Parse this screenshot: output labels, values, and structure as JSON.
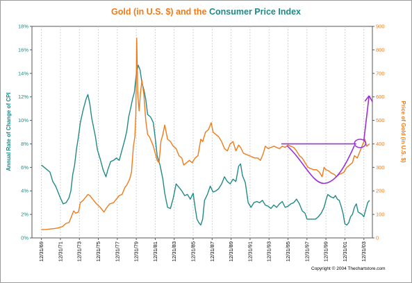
{
  "colors": {
    "cpi": "#1f8a87",
    "gold": "#f07a18",
    "annotation": "#9b30d9",
    "grid": "#c7c7c7",
    "axis": "#555555"
  },
  "copyright": "Copyright © 2004 Thechartstore.com",
  "chart_data": {
    "type": "line",
    "title": {
      "part1": "Gold (in U.S. $)",
      "part2": " and the ",
      "part3": "Consumer Price Index"
    },
    "ylabel_left": "Annual Rate of Change of CPI",
    "ylabel_right": "Price of Gold (in U.S. $)",
    "y_left": {
      "min": 0,
      "max": 18,
      "ticks": [
        "0%",
        "2%",
        "4%",
        "6%",
        "8%",
        "10%",
        "12%",
        "14%",
        "16%",
        "18%"
      ]
    },
    "y_right": {
      "min": 0,
      "max": 900,
      "ticks": [
        "0",
        "100",
        "200",
        "300",
        "400",
        "500",
        "600",
        "700",
        "800",
        "900"
      ]
    },
    "x_range": [
      1969.0,
      2004.9
    ],
    "x_ticks": [
      "12/31/69",
      "12/31/71",
      "12/31/73",
      "12/31/75",
      "12/31/77",
      "12/31/79",
      "12/31/81",
      "12/31/83",
      "12/31/85",
      "12/31/87",
      "12/31/89",
      "12/31/91",
      "12/31/93",
      "12/31/95",
      "12/31/97",
      "12/31/99",
      "12/31/01",
      "12/31/03"
    ],
    "grid": "vertical-dashed",
    "series": [
      {
        "name": "CPI",
        "axis": "left",
        "points": [
          [
            1970.0,
            6.2
          ],
          [
            1970.3,
            6.0
          ],
          [
            1970.6,
            5.8
          ],
          [
            1970.9,
            5.6
          ],
          [
            1971.2,
            4.8
          ],
          [
            1971.5,
            4.4
          ],
          [
            1971.8,
            3.8
          ],
          [
            1972.0,
            3.4
          ],
          [
            1972.3,
            2.9
          ],
          [
            1972.6,
            3.0
          ],
          [
            1972.9,
            3.4
          ],
          [
            1973.1,
            4.0
          ],
          [
            1973.3,
            5.4
          ],
          [
            1973.5,
            6.2
          ],
          [
            1973.7,
            7.6
          ],
          [
            1973.9,
            8.6
          ],
          [
            1974.1,
            9.8
          ],
          [
            1974.4,
            10.9
          ],
          [
            1974.7,
            11.8
          ],
          [
            1974.9,
            12.2
          ],
          [
            1975.1,
            11.4
          ],
          [
            1975.3,
            10.2
          ],
          [
            1975.5,
            9.4
          ],
          [
            1975.7,
            8.6
          ],
          [
            1975.9,
            7.5
          ],
          [
            1976.2,
            6.7
          ],
          [
            1976.5,
            5.8
          ],
          [
            1976.8,
            5.2
          ],
          [
            1977.0,
            5.8
          ],
          [
            1977.3,
            6.5
          ],
          [
            1977.6,
            6.6
          ],
          [
            1977.9,
            6.8
          ],
          [
            1978.2,
            6.6
          ],
          [
            1978.5,
            7.5
          ],
          [
            1978.8,
            8.4
          ],
          [
            1979.0,
            9.1
          ],
          [
            1979.2,
            10.3
          ],
          [
            1979.4,
            11.0
          ],
          [
            1979.6,
            11.8
          ],
          [
            1979.8,
            12.4
          ],
          [
            1980.0,
            13.9
          ],
          [
            1980.2,
            14.7
          ],
          [
            1980.4,
            14.3
          ],
          [
            1980.6,
            13.2
          ],
          [
            1980.8,
            12.6
          ],
          [
            1981.0,
            11.8
          ],
          [
            1981.2,
            10.5
          ],
          [
            1981.5,
            10.3
          ],
          [
            1981.8,
            9.8
          ],
          [
            1982.0,
            8.5
          ],
          [
            1982.2,
            7.0
          ],
          [
            1982.5,
            6.2
          ],
          [
            1982.8,
            5.0
          ],
          [
            1983.0,
            3.8
          ],
          [
            1983.3,
            2.6
          ],
          [
            1983.6,
            2.5
          ],
          [
            1983.9,
            3.4
          ],
          [
            1984.2,
            4.6
          ],
          [
            1984.5,
            4.3
          ],
          [
            1984.8,
            4.0
          ],
          [
            1985.1,
            3.6
          ],
          [
            1985.4,
            3.7
          ],
          [
            1985.7,
            3.3
          ],
          [
            1986.0,
            3.8
          ],
          [
            1986.2,
            2.6
          ],
          [
            1986.4,
            1.6
          ],
          [
            1986.6,
            1.3
          ],
          [
            1986.8,
            1.1
          ],
          [
            1987.0,
            1.6
          ],
          [
            1987.2,
            3.2
          ],
          [
            1987.5,
            3.7
          ],
          [
            1987.8,
            4.4
          ],
          [
            1988.1,
            3.9
          ],
          [
            1988.4,
            4.0
          ],
          [
            1988.7,
            4.2
          ],
          [
            1989.0,
            4.6
          ],
          [
            1989.3,
            5.2
          ],
          [
            1989.6,
            4.8
          ],
          [
            1989.9,
            4.6
          ],
          [
            1990.2,
            5.0
          ],
          [
            1990.5,
            4.8
          ],
          [
            1990.8,
            6.1
          ],
          [
            1991.0,
            6.3
          ],
          [
            1991.2,
            5.3
          ],
          [
            1991.5,
            4.7
          ],
          [
            1991.8,
            3.0
          ],
          [
            1992.1,
            2.6
          ],
          [
            1992.4,
            3.0
          ],
          [
            1992.7,
            3.1
          ],
          [
            1993.0,
            3.0
          ],
          [
            1993.3,
            3.2
          ],
          [
            1993.6,
            2.8
          ],
          [
            1993.9,
            2.7
          ],
          [
            1994.2,
            2.5
          ],
          [
            1994.5,
            2.8
          ],
          [
            1994.8,
            2.6
          ],
          [
            1995.1,
            2.9
          ],
          [
            1995.4,
            3.1
          ],
          [
            1995.7,
            2.6
          ],
          [
            1996.0,
            2.7
          ],
          [
            1996.3,
            2.9
          ],
          [
            1996.6,
            3.0
          ],
          [
            1996.9,
            3.3
          ],
          [
            1997.2,
            2.9
          ],
          [
            1997.5,
            2.3
          ],
          [
            1997.8,
            2.1
          ],
          [
            1998.0,
            1.6
          ],
          [
            1998.3,
            1.6
          ],
          [
            1998.6,
            1.6
          ],
          [
            1998.9,
            1.6
          ],
          [
            1999.2,
            1.8
          ],
          [
            1999.5,
            2.1
          ],
          [
            1999.8,
            2.6
          ],
          [
            2000.0,
            3.2
          ],
          [
            2000.2,
            3.7
          ],
          [
            2000.5,
            3.5
          ],
          [
            2000.8,
            3.4
          ],
          [
            2001.0,
            3.6
          ],
          [
            2001.2,
            3.3
          ],
          [
            2001.4,
            3.2
          ],
          [
            2001.6,
            2.7
          ],
          [
            2001.8,
            2.1
          ],
          [
            2002.0,
            1.2
          ],
          [
            2002.2,
            1.1
          ],
          [
            2002.4,
            1.3
          ],
          [
            2002.6,
            1.8
          ],
          [
            2002.8,
            2.0
          ],
          [
            2003.0,
            2.6
          ],
          [
            2003.2,
            2.9
          ],
          [
            2003.4,
            2.2
          ],
          [
            2003.6,
            2.1
          ],
          [
            2003.8,
            2.0
          ],
          [
            2004.0,
            1.8
          ],
          [
            2004.2,
            2.4
          ],
          [
            2004.4,
            3.0
          ],
          [
            2004.6,
            3.2
          ]
        ]
      },
      {
        "name": "Gold",
        "axis": "right",
        "points": [
          [
            1970.0,
            35
          ],
          [
            1970.5,
            36
          ],
          [
            1971.0,
            38
          ],
          [
            1971.4,
            40
          ],
          [
            1971.8,
            43
          ],
          [
            1972.2,
            48
          ],
          [
            1972.6,
            62
          ],
          [
            1972.9,
            65
          ],
          [
            1973.1,
            85
          ],
          [
            1973.4,
            115
          ],
          [
            1973.6,
            105
          ],
          [
            1973.9,
            110
          ],
          [
            1974.1,
            150
          ],
          [
            1974.4,
            160
          ],
          [
            1974.7,
            175
          ],
          [
            1974.9,
            185
          ],
          [
            1975.1,
            180
          ],
          [
            1975.4,
            165
          ],
          [
            1975.8,
            145
          ],
          [
            1976.2,
            130
          ],
          [
            1976.6,
            110
          ],
          [
            1976.9,
            130
          ],
          [
            1977.2,
            145
          ],
          [
            1977.6,
            150
          ],
          [
            1977.9,
            165
          ],
          [
            1978.2,
            180
          ],
          [
            1978.5,
            185
          ],
          [
            1978.8,
            215
          ],
          [
            1979.0,
            225
          ],
          [
            1979.3,
            250
          ],
          [
            1979.5,
            280
          ],
          [
            1979.7,
            390
          ],
          [
            1979.85,
            430
          ],
          [
            1979.95,
            525
          ],
          [
            1980.05,
            850
          ],
          [
            1980.15,
            620
          ],
          [
            1980.3,
            540
          ],
          [
            1980.45,
            620
          ],
          [
            1980.6,
            670
          ],
          [
            1980.8,
            610
          ],
          [
            1981.0,
            500
          ],
          [
            1981.2,
            440
          ],
          [
            1981.4,
            430
          ],
          [
            1981.6,
            410
          ],
          [
            1981.8,
            390
          ],
          [
            1982.0,
            360
          ],
          [
            1982.2,
            330
          ],
          [
            1982.4,
            320
          ],
          [
            1982.6,
            410
          ],
          [
            1982.8,
            440
          ],
          [
            1983.0,
            480
          ],
          [
            1983.3,
            420
          ],
          [
            1983.6,
            410
          ],
          [
            1983.9,
            390
          ],
          [
            1984.2,
            380
          ],
          [
            1984.5,
            350
          ],
          [
            1984.8,
            340
          ],
          [
            1985.0,
            310
          ],
          [
            1985.3,
            320
          ],
          [
            1985.6,
            330
          ],
          [
            1985.9,
            320
          ],
          [
            1986.2,
            340
          ],
          [
            1986.5,
            350
          ],
          [
            1986.8,
            420
          ],
          [
            1987.0,
            410
          ],
          [
            1987.3,
            450
          ],
          [
            1987.6,
            460
          ],
          [
            1987.9,
            490
          ],
          [
            1988.1,
            450
          ],
          [
            1988.4,
            440
          ],
          [
            1988.7,
            430
          ],
          [
            1989.0,
            410
          ],
          [
            1989.3,
            380
          ],
          [
            1989.6,
            370
          ],
          [
            1989.9,
            400
          ],
          [
            1990.2,
            410
          ],
          [
            1990.5,
            370
          ],
          [
            1990.8,
            395
          ],
          [
            1991.0,
            385
          ],
          [
            1991.3,
            360
          ],
          [
            1991.6,
            355
          ],
          [
            1991.9,
            350
          ],
          [
            1992.2,
            345
          ],
          [
            1992.5,
            340
          ],
          [
            1992.8,
            340
          ],
          [
            1993.1,
            330
          ],
          [
            1993.4,
            360
          ],
          [
            1993.6,
            390
          ],
          [
            1993.9,
            380
          ],
          [
            1994.2,
            385
          ],
          [
            1994.5,
            390
          ],
          [
            1994.8,
            385
          ],
          [
            1995.1,
            380
          ],
          [
            1995.4,
            390
          ],
          [
            1995.7,
            385
          ],
          [
            1996.0,
            395
          ],
          [
            1996.3,
            390
          ],
          [
            1996.6,
            385
          ],
          [
            1996.9,
            370
          ],
          [
            1997.2,
            350
          ],
          [
            1997.5,
            340
          ],
          [
            1997.8,
            320
          ],
          [
            1998.1,
            300
          ],
          [
            1998.4,
            295
          ],
          [
            1998.7,
            290
          ],
          [
            1999.0,
            290
          ],
          [
            1999.3,
            280
          ],
          [
            1999.6,
            260
          ],
          [
            1999.8,
            300
          ],
          [
            2000.0,
            290
          ],
          [
            2000.3,
            285
          ],
          [
            2000.6,
            275
          ],
          [
            2000.9,
            270
          ],
          [
            2001.1,
            260
          ],
          [
            2001.4,
            270
          ],
          [
            2001.7,
            275
          ],
          [
            2001.9,
            280
          ],
          [
            2002.2,
            300
          ],
          [
            2002.5,
            310
          ],
          [
            2002.8,
            320
          ],
          [
            2003.0,
            350
          ],
          [
            2003.3,
            340
          ],
          [
            2003.6,
            370
          ],
          [
            2003.9,
            400
          ],
          [
            2004.1,
            420
          ],
          [
            2004.3,
            390
          ],
          [
            2004.6,
            400
          ]
        ]
      }
    ]
  }
}
